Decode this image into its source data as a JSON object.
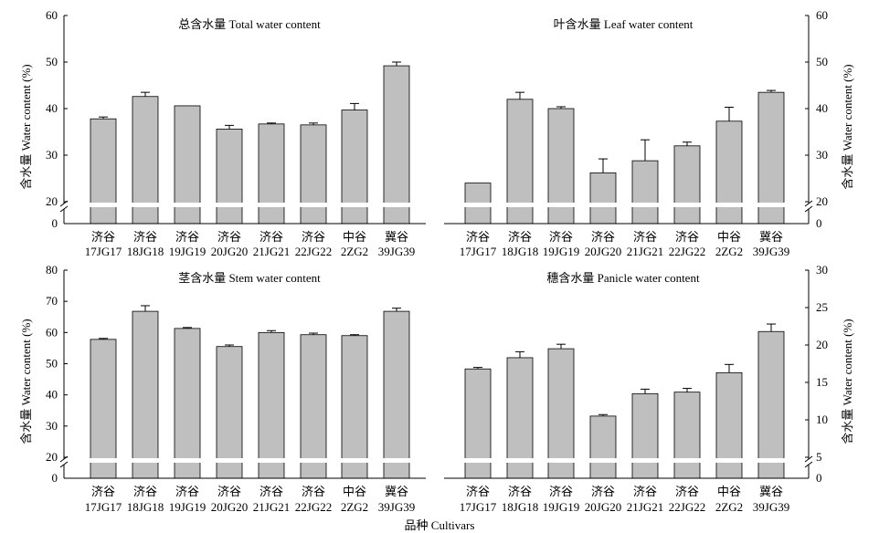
{
  "x_label": "品种 Cultivars",
  "categories": [
    [
      "济谷",
      "17JG17"
    ],
    [
      "济谷",
      "18JG18"
    ],
    [
      "济谷",
      "19JG19"
    ],
    [
      "济谷",
      "20JG20"
    ],
    [
      "济谷",
      "21JG21"
    ],
    [
      "济谷",
      "22JG22"
    ],
    [
      "中谷",
      "2ZG2"
    ],
    [
      "冀谷",
      "39JG39"
    ]
  ],
  "colors": {
    "bar": "#bfbfbf",
    "axis": "#000000",
    "gap": "#ffffff"
  },
  "chart_data": [
    {
      "type": "bar",
      "title": "总含水量 Total water content",
      "ylabel": "含水量 Water content (%)",
      "yaxis_side": "left",
      "ylim": [
        20,
        60
      ],
      "yticks": [
        20,
        30,
        40,
        50,
        60
      ],
      "axis_break": true,
      "categories": [
        "17JG17",
        "18JG18",
        "19JG19",
        "20JG20",
        "21JG21",
        "22JG22",
        "2ZG2",
        "39JG39"
      ],
      "values": [
        37.8,
        42.6,
        40.6,
        35.6,
        36.7,
        36.5,
        39.7,
        49.2
      ],
      "errors": [
        0.4,
        0.9,
        0.0,
        0.8,
        0.2,
        0.4,
        1.4,
        0.8
      ]
    },
    {
      "type": "bar",
      "title": "叶含水量 Leaf water content",
      "ylabel": "含水量 Water content (%)",
      "yaxis_side": "right",
      "ylim": [
        20,
        60
      ],
      "yticks": [
        20,
        30,
        40,
        50,
        60
      ],
      "axis_break": true,
      "categories": [
        "17JG17",
        "18JG18",
        "19JG19",
        "20JG20",
        "21JG21",
        "22JG22",
        "2ZG2",
        "39JG39"
      ],
      "values": [
        24.0,
        42.0,
        40.0,
        26.2,
        28.8,
        32.0,
        37.3,
        43.5
      ],
      "errors": [
        0.0,
        1.5,
        0.4,
        3.0,
        4.5,
        0.8,
        3.0,
        0.4
      ]
    },
    {
      "type": "bar",
      "title": "茎含水量 Stem water content",
      "ylabel": "含水量 Water content (%)",
      "yaxis_side": "left",
      "ylim": [
        20,
        80
      ],
      "yticks": [
        20,
        30,
        40,
        50,
        60,
        70,
        80
      ],
      "axis_break": true,
      "categories": [
        "17JG17",
        "18JG18",
        "19JG19",
        "20JG20",
        "21JG21",
        "22JG22",
        "2ZG2",
        "39JG39"
      ],
      "values": [
        57.8,
        66.8,
        61.3,
        55.5,
        60.0,
        59.3,
        59.0,
        66.8
      ],
      "errors": [
        0.3,
        1.8,
        0.3,
        0.5,
        0.6,
        0.5,
        0.3,
        1.0
      ]
    },
    {
      "type": "bar",
      "title": "穗含水量 Panicle water content",
      "ylabel": "含水量 Water content (%)",
      "yaxis_side": "right",
      "ylim": [
        5,
        30
      ],
      "yticks": [
        5,
        10,
        15,
        20,
        25,
        30
      ],
      "axis_break": true,
      "categories": [
        "17JG17",
        "18JG18",
        "19JG19",
        "20JG20",
        "21JG21",
        "22JG22",
        "2ZG2",
        "39JG39"
      ],
      "values": [
        16.8,
        18.3,
        19.5,
        10.5,
        13.5,
        13.7,
        16.3,
        21.8
      ],
      "errors": [
        0.2,
        0.8,
        0.6,
        0.2,
        0.6,
        0.5,
        1.1,
        1.0
      ]
    }
  ]
}
